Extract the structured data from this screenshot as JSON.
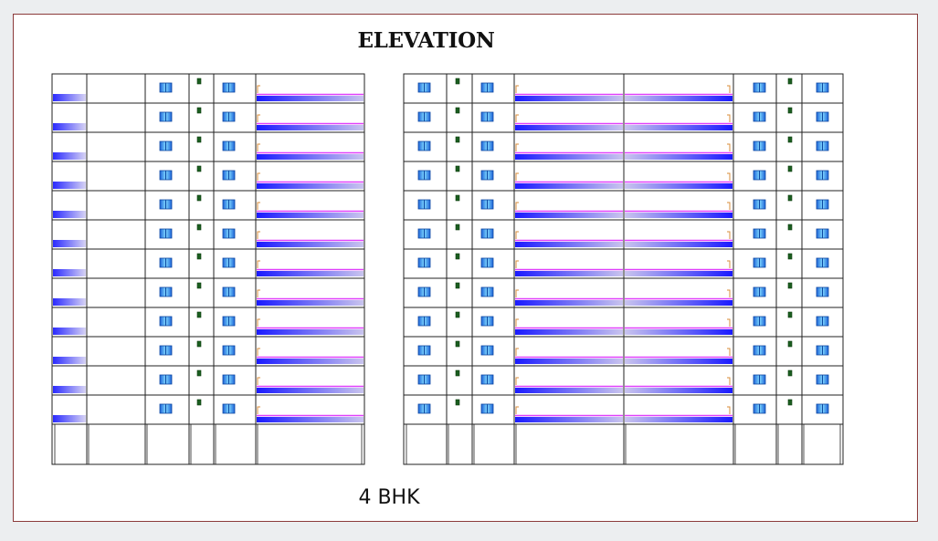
{
  "drawing": {
    "title": "ELEVATION",
    "caption": "4 BHK"
  },
  "elevation": {
    "floors": 12,
    "blocks": [
      "left-block",
      "right-block"
    ]
  },
  "colors": {
    "sheet_border": "#8b3a3a",
    "lines": "#222222",
    "window_blue": "#1e88e5",
    "window_light": "#6fd3ff",
    "balcony_dark": "#1a1aff",
    "balcony_light": "#c9c4ee",
    "railing_magenta": "#e040fb",
    "ac_green": "#1b5e20",
    "bracket_orange": "#d98c3a"
  }
}
